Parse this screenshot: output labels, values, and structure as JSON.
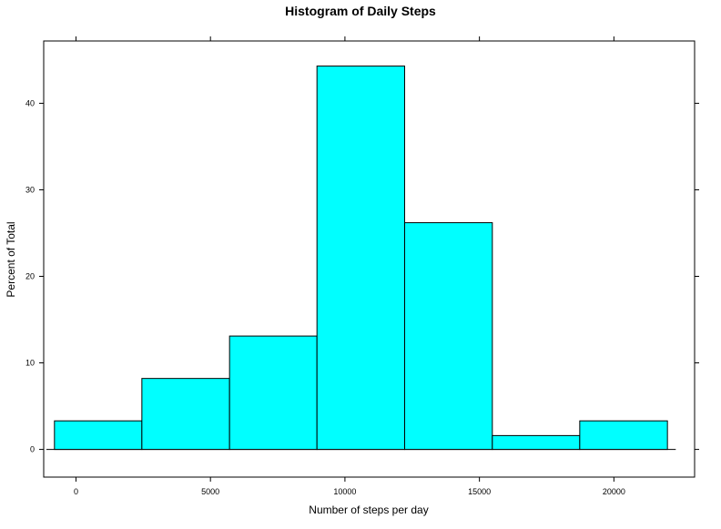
{
  "chart_data": {
    "type": "bar",
    "title": "Histogram of Daily Steps",
    "xlabel": "Number of steps per day",
    "ylabel": "Percent of Total",
    "xlim": [
      -1200,
      23000
    ],
    "ylim": [
      -3.2,
      47.2
    ],
    "x_ticks": [
      0,
      5000,
      10000,
      15000,
      20000
    ],
    "y_ticks": [
      0,
      10,
      20,
      30,
      40
    ],
    "bins": [
      {
        "start": -800,
        "end": 2450,
        "value": 3.3
      },
      {
        "start": 2450,
        "end": 5710,
        "value": 8.2
      },
      {
        "start": 5710,
        "end": 8960,
        "value": 13.1
      },
      {
        "start": 8960,
        "end": 12220,
        "value": 44.3
      },
      {
        "start": 12220,
        "end": 15480,
        "value": 26.2
      },
      {
        "start": 15480,
        "end": 18730,
        "value": 1.6
      },
      {
        "start": 18730,
        "end": 21990,
        "value": 3.3
      }
    ],
    "baseline_range": [
      -1100,
      22300
    ],
    "bar_color": "#00ffff",
    "bar_stroke": "#000000",
    "grid": false,
    "legend": "none"
  }
}
